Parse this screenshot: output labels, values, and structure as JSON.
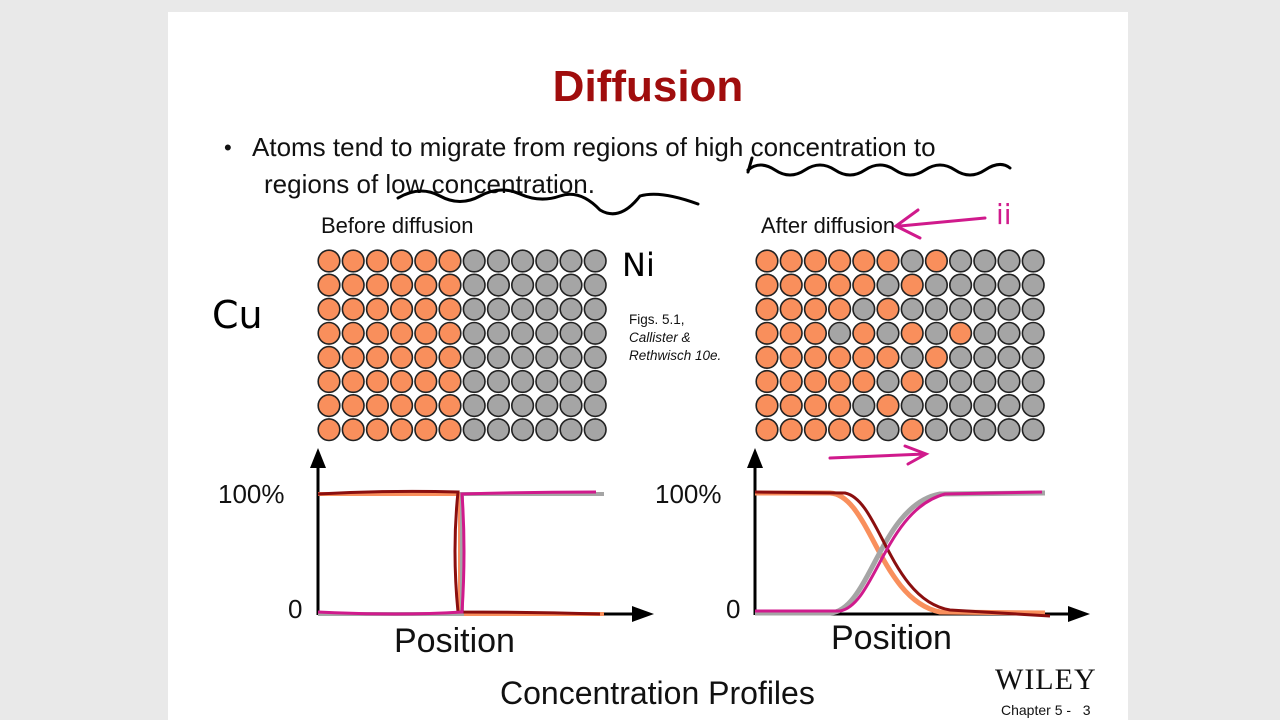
{
  "title": "Diffusion",
  "bullet": {
    "line1": "Atoms tend to migrate from regions of high concentration to",
    "line2": "regions of low concentration."
  },
  "before": {
    "label": "Before diffusion",
    "grid": [
      "OOOOOOGGGGGG",
      "OOOOOOGGGGGG",
      "OOOOOOGGGGGG",
      "OOOOOOGGGGGG",
      "OOOOOOGGGGGG",
      "OOOOOOGGGGGG",
      "OOOOOOGGGGGG",
      "OOOOOOGGGGGG"
    ]
  },
  "after": {
    "label": "After diffusion",
    "grid": [
      "OOOOOOGOGGGG",
      "OOOOOGOGGGGG",
      "OOOOGOGGGGGG",
      "OOOGOGOGOGGG",
      "OOOOOOGOGGGG",
      "OOOOOGOGGGGG",
      "OOOOGOGGGGGG",
      "OOOOOGOGGGGG"
    ]
  },
  "colors": {
    "cu": "#f98f5c",
    "ni": "#a5a5a5",
    "title": "#a00d0d",
    "pen_red": "#8b0f0f",
    "pen_pink": "#d01a8c"
  },
  "figure_credit": {
    "line1": "Figs. 5.1,",
    "line2": "Callister &",
    "line3": "Rethwisch 10e."
  },
  "plots": {
    "y_top": "100%",
    "y_zero": "0",
    "x_label": "Position"
  },
  "caption": "Concentration Profiles",
  "handwritten": {
    "cu": "Cu",
    "ni": "Ni",
    "mark": "ii"
  },
  "footer": {
    "publisher": "WILEY",
    "chapter": "Chapter 5 -",
    "page": "3"
  }
}
